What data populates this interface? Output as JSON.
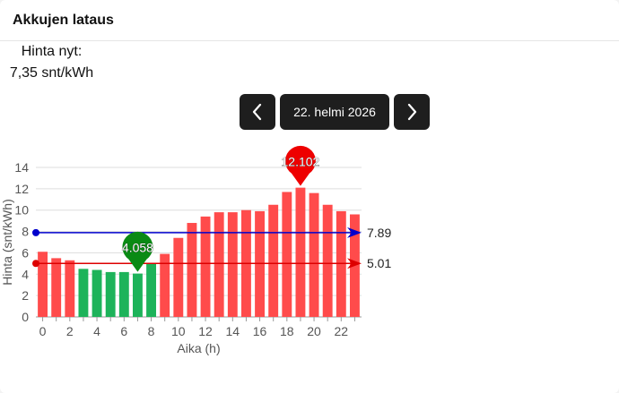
{
  "card": {
    "title": "Akkujen lataus"
  },
  "price": {
    "label": "Hinta nyt:",
    "value": "7,35 snt/kWh"
  },
  "date_nav": {
    "date_label": "22. helmi 2026",
    "prev_icon": "chevron-left-icon",
    "next_icon": "chevron-right-icon"
  },
  "colors": {
    "bar_normal": "#ff4b4b",
    "bar_cheap": "#1db35a",
    "avg_line": "#0000cc",
    "threshold_line": "#dd0000",
    "max_marker": "#ee0000",
    "min_marker": "#0a8a14",
    "button_bg": "#1e1e1e"
  },
  "chart_data": {
    "type": "bar",
    "xlabel": "Aika (h)",
    "ylabel": "Hinta (snt/kWh)",
    "ylim": [
      0,
      14
    ],
    "yticks": [
      0,
      2,
      4,
      6,
      8,
      10,
      12,
      14
    ],
    "xticks": [
      0,
      2,
      4,
      6,
      8,
      10,
      12,
      14,
      16,
      18,
      20,
      22
    ],
    "x": [
      0,
      1,
      2,
      3,
      4,
      5,
      6,
      7,
      8,
      9,
      10,
      11,
      12,
      13,
      14,
      15,
      16,
      17,
      18,
      19,
      20,
      21,
      22,
      23
    ],
    "values": [
      6.1,
      5.5,
      5.3,
      4.5,
      4.4,
      4.2,
      4.2,
      4.058,
      5.0,
      5.9,
      7.4,
      8.8,
      9.4,
      9.8,
      9.8,
      10.0,
      9.9,
      10.5,
      11.7,
      12.102,
      11.6,
      10.5,
      9.9,
      9.6
    ],
    "cheap_hours": [
      3,
      4,
      5,
      6,
      7,
      8
    ],
    "grid": true,
    "lines": [
      {
        "label": "7.89",
        "value": 7.89,
        "color": "blue"
      },
      {
        "label": "5.01",
        "value": 5.01,
        "color": "red"
      }
    ],
    "markers": [
      {
        "label": "12.102",
        "x": 19,
        "value": 12.102,
        "kind": "max"
      },
      {
        "label": "4.058",
        "x": 7,
        "value": 4.058,
        "kind": "min"
      }
    ]
  }
}
